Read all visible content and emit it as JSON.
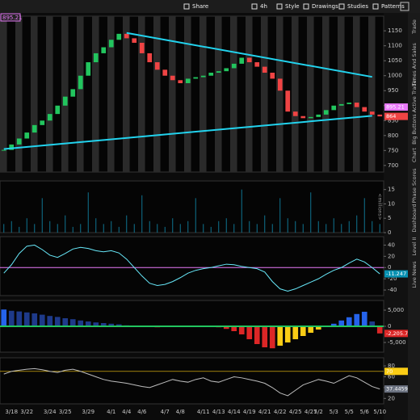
{
  "toolbar": {
    "items": [
      "Share",
      "4h",
      "Style",
      "Drawings",
      "Studies",
      "Patterns"
    ]
  },
  "side_tabs": [
    "Trade",
    "Times And Sales",
    "Active Trader",
    "Big Buttons",
    "Chart",
    "Phase Scores",
    "Dashboard",
    "Level II",
    "Live News"
  ],
  "chart_data": [
    {
      "type": "candlestick",
      "up_color": "#22c55e",
      "down_color": "#ef4444",
      "values": [
        752,
        770,
        790,
        810,
        835,
        850,
        872,
        900,
        930,
        955,
        1000,
        1045,
        1075,
        1095,
        1120,
        1140,
        1125,
        1110,
        1075,
        1045,
        1020,
        1000,
        985,
        975,
        990,
        995,
        1000,
        1010,
        1015,
        1025,
        1040,
        1060,
        1045,
        1030,
        1010,
        990,
        950,
        880,
        865,
        858,
        862,
        870,
        885,
        900,
        905,
        910,
        895,
        880,
        870,
        864
      ],
      "ylim": [
        678,
        1199
      ],
      "yticks": [
        700,
        750,
        800,
        850,
        900,
        950,
        1000,
        1050,
        1100,
        1150
      ],
      "markers": [
        {
          "value": 895.21,
          "color": "#e879f9"
        },
        {
          "value": 864,
          "color": "#ef4444"
        }
      ],
      "trendlines": [
        {
          "color": "#22d3ee",
          "values": [
            1143,
            996
          ]
        },
        {
          "color": "#22d3ee",
          "values": [
            755,
            866
          ]
        }
      ]
    },
    {
      "type": "bar",
      "color": "#0e7490",
      "unit_label": "<millions>",
      "values": [
        3,
        4,
        2,
        5,
        3,
        12,
        4,
        3,
        6,
        2,
        3,
        14,
        5,
        3,
        4,
        2,
        6,
        3,
        13,
        4,
        3,
        2,
        5,
        3,
        4,
        12,
        3,
        2,
        4,
        5,
        3,
        15,
        4,
        3,
        6,
        3,
        12,
        5,
        4,
        3,
        14,
        4,
        3,
        5,
        3,
        4,
        6,
        12,
        4,
        3
      ],
      "ylim": [
        0,
        18
      ],
      "yticks": [
        0,
        5,
        10,
        15
      ]
    },
    {
      "type": "line",
      "zero_color": "#e879f9",
      "series": [
        {
          "color": "#67e8f9",
          "values": [
            -10,
            5,
            25,
            38,
            40,
            32,
            22,
            18,
            25,
            33,
            36,
            34,
            30,
            28,
            30,
            26,
            15,
            0,
            -15,
            -28,
            -32,
            -30,
            -25,
            -18,
            -10,
            -5,
            -2,
            0,
            3,
            6,
            5,
            2,
            0,
            -2,
            -8,
            -25,
            -38,
            -42,
            -38,
            -32,
            -26,
            -20,
            -12,
            -5,
            0,
            8,
            15,
            10,
            0,
            -11.247
          ]
        }
      ],
      "ylim": [
        -50,
        55
      ],
      "yticks": [
        -40,
        -20,
        0,
        20,
        40
      ],
      "markers": [
        {
          "value": -11.247,
          "color": "#0891b2"
        }
      ]
    },
    {
      "type": "histogram",
      "colors": [
        "#2563eb",
        "#1e3a8a",
        "#dc2626",
        "#facc15"
      ],
      "zero_color": "#22c55e",
      "values": [
        5200,
        4800,
        4600,
        4300,
        4000,
        3600,
        3200,
        2900,
        2500,
        2200,
        1800,
        1500,
        1200,
        1000,
        800,
        600,
        300,
        100,
        -100,
        -200,
        -300,
        -200,
        -100,
        0,
        100,
        200,
        100,
        -100,
        -300,
        -800,
        -1500,
        -2500,
        -4000,
        -5500,
        -6500,
        -6800,
        -6000,
        -5000,
        -4000,
        -3000,
        -2000,
        -1000,
        -200,
        800,
        1800,
        2800,
        3800,
        4500,
        1500,
        -2205.7
      ],
      "ylim": [
        -8000,
        8000
      ],
      "yticks": [
        {
          "value": -5000,
          "label": "-5,000"
        },
        0,
        {
          "value": 5000,
          "label": "5,000"
        }
      ],
      "markers": [
        {
          "value": -2205.7,
          "label": "-2,205.7",
          "color": "#dc2626"
        }
      ]
    },
    {
      "type": "line",
      "level_color": "#facc15",
      "series": [
        {
          "color": "#bdbdbd",
          "values": [
            65,
            70,
            72,
            74,
            75,
            73,
            70,
            68,
            72,
            74,
            70,
            65,
            60,
            55,
            52,
            50,
            48,
            45,
            42,
            40,
            45,
            50,
            55,
            52,
            50,
            55,
            58,
            52,
            50,
            55,
            60,
            58,
            55,
            52,
            48,
            40,
            30,
            25,
            35,
            45,
            50,
            55,
            52,
            48,
            55,
            62,
            58,
            50,
            42,
            37.4459
          ]
        }
      ],
      "ylim": [
        10,
        95
      ],
      "yticks": [
        20,
        40,
        60,
        80
      ],
      "markers": [
        {
          "value": 70,
          "color": "#facc15"
        },
        {
          "value": 37.4459,
          "color": "#6b7280"
        }
      ],
      "categories": [
        null,
        "3/18",
        null,
        "3/22",
        null,
        null,
        "3/24",
        null,
        "3/25",
        null,
        null,
        "3/29",
        null,
        null,
        "4/1",
        null,
        "4/4",
        null,
        "4/6",
        null,
        null,
        "4/7",
        null,
        "4/8",
        null,
        null,
        "4/11",
        null,
        "4/13",
        null,
        "4/14",
        null,
        "4/19",
        null,
        "4/21",
        null,
        "4/22",
        null,
        "4/25",
        null,
        "4/27",
        "5/2",
        null,
        "5/3",
        null,
        "5/5",
        null,
        "5/6",
        null,
        "5/10"
      ]
    }
  ]
}
